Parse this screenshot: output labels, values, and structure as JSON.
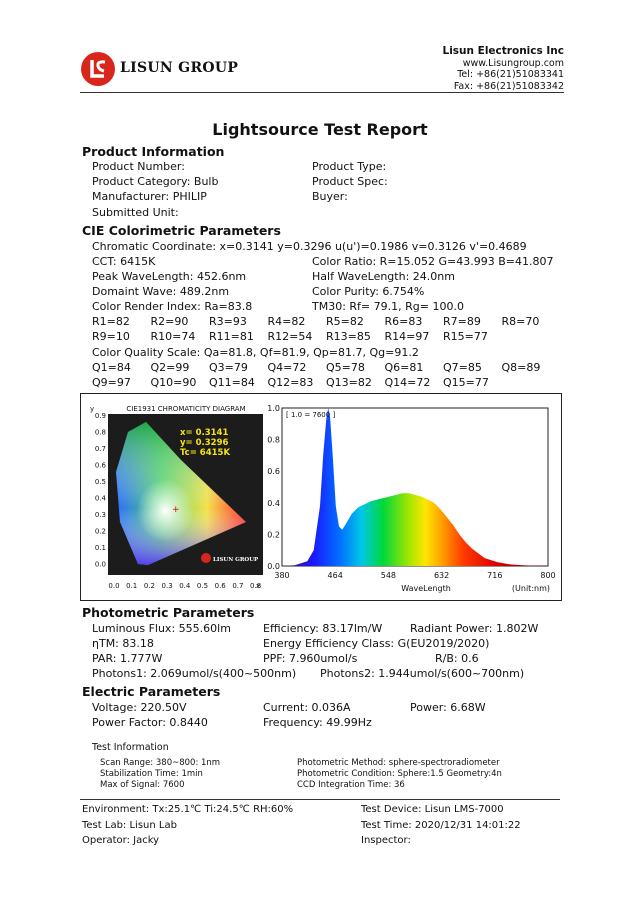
{
  "header": {
    "logo_text": "LISUN GROUP",
    "company_name": "Lisun Electronics Inc",
    "website": "www.Lisungroup.com",
    "tel": "Tel: +86(21)51083341",
    "fax": "Fax: +86(21)51083342"
  },
  "title": "Lightsource Test Report",
  "product": {
    "heading": "Product Information",
    "number": "Product Number:",
    "type": "Product Type:",
    "category": "Product Category:  Bulb",
    "spec": "Product Spec:",
    "manufacturer": "Manufacturer:  PHILIP",
    "buyer": "Buyer:",
    "submitted": "Submitted Unit:"
  },
  "cie": {
    "heading": "CIE Colorimetric Parameters",
    "chromatic": "Chromatic Coordinate: x=0.3141  y=0.3296  u(u')=0.1986  v=0.3126  v'=0.4689",
    "cct": "CCT: 6415K",
    "color_ratio": "Color Ratio: R=15.052 G=43.993 B=41.807",
    "peak": "Peak WaveLength: 452.6nm",
    "half": "Half WaveLength: 24.0nm",
    "dominant": "Domaint Wave: 489.2nm",
    "purity": "Color Purity: 6.754%",
    "cri": "Color Render Index: Ra=83.8",
    "tm30": "TM30: Rf= 79.1, Rg= 100.0",
    "r_row1": [
      "R1=82",
      "R2=90",
      "R3=93",
      "R4=82",
      "R5=82",
      "R6=83",
      "R7=89",
      "R8=70"
    ],
    "r_row2": [
      "R9=10",
      "R10=74",
      "R11=81",
      "R12=54",
      "R13=85",
      "R14=97",
      "R15=77"
    ],
    "cqs": "Color Quality Scale: Qa=81.8, Qf=81.9, Qp=81.7, Qg=91.2",
    "q_row1": [
      "Q1=84",
      "Q2=99",
      "Q3=79",
      "Q4=72",
      "Q5=78",
      "Q6=81",
      "Q7=85",
      "Q8=89"
    ],
    "q_row2": [
      "Q9=97",
      "Q10=90",
      "Q11=84",
      "Q12=83",
      "Q13=82",
      "Q14=72",
      "Q15=77"
    ]
  },
  "cie_diagram": {
    "title": "CIE1931 CHROMATICITY DIAGRAM",
    "x_label": "x",
    "y_label": "y",
    "readout_x": "x= 0.3141",
    "readout_y": "y= 0.3296",
    "readout_tc": "Tc= 6415K",
    "logo": "LISUN GROUP",
    "y_ticks": [
      "0.9",
      "0.8",
      "0.7",
      "0.6",
      "0.5",
      "0.4",
      "0.3",
      "0.2",
      "0.1",
      "0.0"
    ],
    "x_ticks": [
      "0.0",
      "0.1",
      "0.2",
      "0.3",
      "0.4",
      "0.5",
      "0.6",
      "0.7",
      "0.8"
    ]
  },
  "chart_data": {
    "type": "area",
    "title": "",
    "scale_note": "[ 1.0 = 7600 ]",
    "xlabel": "WaveLength",
    "unit": "(Unit:nm)",
    "xlim": [
      380,
      800
    ],
    "ylim": [
      0,
      1.0
    ],
    "x_ticks": [
      "380",
      "464",
      "548",
      "632",
      "716",
      "800"
    ],
    "y_ticks": [
      "1.0",
      "0.8",
      "0.6",
      "0.4",
      "0.2",
      "0.0"
    ],
    "x": [
      380,
      400,
      420,
      430,
      440,
      445,
      450,
      453,
      456,
      460,
      465,
      470,
      475,
      480,
      490,
      500,
      510,
      520,
      530,
      540,
      550,
      560,
      570,
      580,
      590,
      600,
      610,
      620,
      630,
      640,
      650,
      660,
      670,
      680,
      690,
      700,
      720,
      740,
      760,
      780,
      800
    ],
    "values": [
      0.0,
      0.005,
      0.03,
      0.1,
      0.38,
      0.7,
      0.93,
      1.0,
      0.94,
      0.7,
      0.38,
      0.25,
      0.23,
      0.26,
      0.33,
      0.37,
      0.39,
      0.41,
      0.42,
      0.43,
      0.44,
      0.45,
      0.46,
      0.46,
      0.45,
      0.44,
      0.42,
      0.4,
      0.36,
      0.31,
      0.26,
      0.2,
      0.15,
      0.11,
      0.08,
      0.05,
      0.025,
      0.01,
      0.005,
      0.002,
      0.0
    ]
  },
  "photometric": {
    "heading": "Photometric Parameters",
    "flux": "Luminous Flux: 555.60lm",
    "efficiency": "Efficiency: 83.17lm/W",
    "radiant": "Radiant Power: 1.802W",
    "ntm": "ηTM: 83.18",
    "energy_class": "Energy Efficiency Class: G(EU2019/2020)",
    "par": "PAR: 1.777W",
    "ppf": "PPF: 7.960umol/s",
    "rb": "R/B: 0.6",
    "photons1": "Photons1: 2.069umol/s(400~500nm)",
    "photons2": "Photons2: 1.944umol/s(600~700nm)"
  },
  "electric": {
    "heading": "Electric Parameters",
    "voltage": "Voltage: 220.50V",
    "current": "Current: 0.036A",
    "power": "Power: 6.68W",
    "pf": "Power Factor: 0.8440",
    "frequency": "Frequency: 49.99Hz"
  },
  "test_info": {
    "heading": "Test Information",
    "scan_range": "Scan Range: 380~800:  1nm",
    "stabilization": "Stabilization Time: 1min",
    "max_signal": "Max of Signal: 7600",
    "method": "Photometric Method: sphere-spectroradiometer",
    "condition": "Photometric Condition: Sphere:1.5 Geometry:4n",
    "ccd": "CCD Integration Time: 36"
  },
  "footer": {
    "environment": "Environment:  Tx:25.1℃  Ti:24.5℃  RH:60%",
    "device": "Test Device: Lisun LMS-7000",
    "lab": "Test Lab: Lisun Lab",
    "time": "Test Time: 2020/12/31 14:01:22",
    "operator": "Operator: Jacky",
    "inspector": "Inspector:"
  }
}
